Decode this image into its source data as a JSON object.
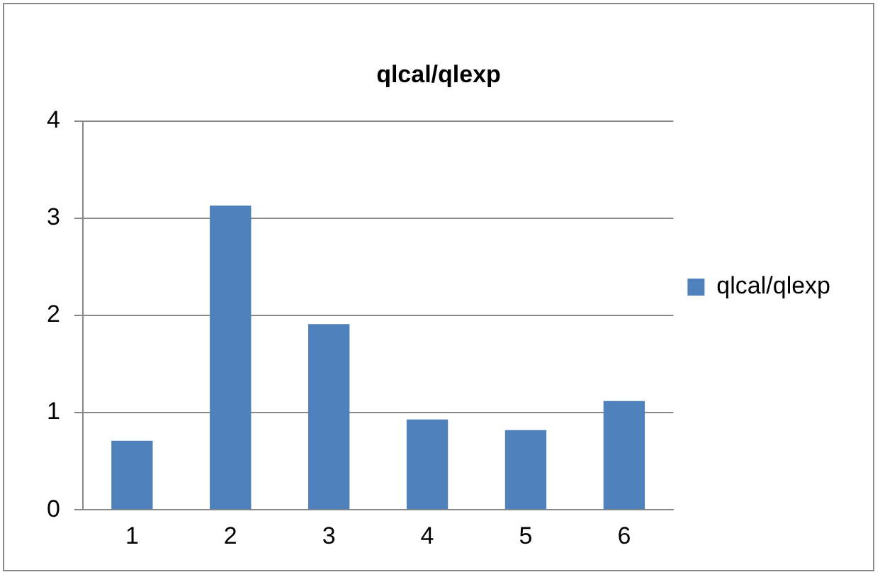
{
  "chart_data": {
    "type": "bar",
    "title": "qlcal/qlexp",
    "categories": [
      "1",
      "2",
      "3",
      "4",
      "5",
      "6"
    ],
    "series": [
      {
        "name": "qlcal/qlexp",
        "color": "#4f81bd",
        "values": [
          0.71,
          3.13,
          1.91,
          0.93,
          0.82,
          1.12
        ]
      }
    ],
    "ylim": [
      0,
      4
    ],
    "yticks": [
      0,
      1,
      2,
      3,
      4
    ],
    "grid": "y",
    "legend": "right"
  }
}
